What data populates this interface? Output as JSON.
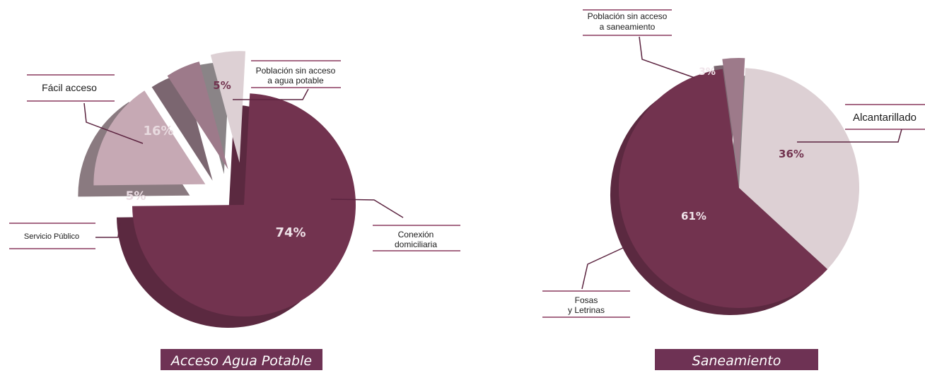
{
  "colors": {
    "dark": "#72334f",
    "dark_side": "#5b2940",
    "medium": "#9d7a8a",
    "medium_side": "#7b6670",
    "light": "#c6a9b4",
    "light_side": "#8a7a80",
    "pale": "#ddd0d4",
    "pale_side": "#8a8487",
    "leader": "#5c2440",
    "rule": "#8a3a5e"
  },
  "chart_data": [
    {
      "type": "pie",
      "title": "Acceso Agua Potable",
      "categories": [
        "Conexión domiciliaria",
        "Fácil acceso",
        "Servicio Público",
        "Población sin acceso a agua potable"
      ],
      "values": [
        74,
        16,
        5,
        5
      ],
      "value_labels": [
        "74%",
        "16%",
        "5%",
        "5%"
      ],
      "legend": "none",
      "style": "3d exploded pie"
    },
    {
      "type": "pie",
      "title": "Saneamiento",
      "categories": [
        "Alcantarillado",
        "Fosas y Letrinas",
        "Población sin acceso a saneamiento"
      ],
      "values": [
        36,
        61,
        3
      ],
      "value_labels": [
        "36%",
        "61%",
        "3%"
      ],
      "legend": "none",
      "style": "3d exploded pie"
    }
  ],
  "labels": {
    "agua": {
      "conexion_1": "Conexión",
      "conexion_2": "domiciliaria",
      "facil": "Fácil acceso",
      "servicio": "Servicio Público",
      "sin_acceso_1": "Población sin acceso",
      "sin_acceso_2": "a agua potable"
    },
    "saneamiento": {
      "alcantarillado": "Alcantarillado",
      "fosas_1": "Fosas",
      "fosas_2": "y Letrinas",
      "sin_acceso_1": "Población sin acceso",
      "sin_acceso_2": "a saneamiento"
    }
  }
}
